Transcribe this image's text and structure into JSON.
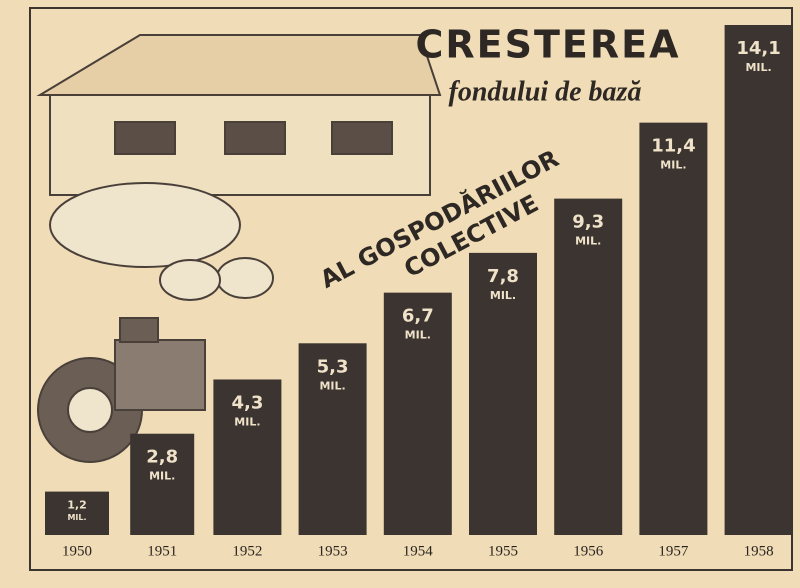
{
  "chart_data": {
    "type": "bar",
    "title": "CRESTEREA",
    "subtitle": "fondului de bază",
    "annotation": [
      "AL GOSPODĂRIILOR",
      "COLECTIVE"
    ],
    "unit_label": "MIL.",
    "categories": [
      "1950",
      "1951",
      "1952",
      "1953",
      "1954",
      "1955",
      "1956",
      "1957",
      "1958"
    ],
    "values": [
      1.2,
      2.8,
      4.3,
      5.3,
      6.7,
      7.8,
      9.3,
      11.4,
      14.1
    ],
    "value_labels": [
      "1,2",
      "2,8",
      "4,3",
      "5,3",
      "6,7",
      "7,8",
      "9,3",
      "11,4",
      "14,1"
    ],
    "color": "#3b3431"
  }
}
